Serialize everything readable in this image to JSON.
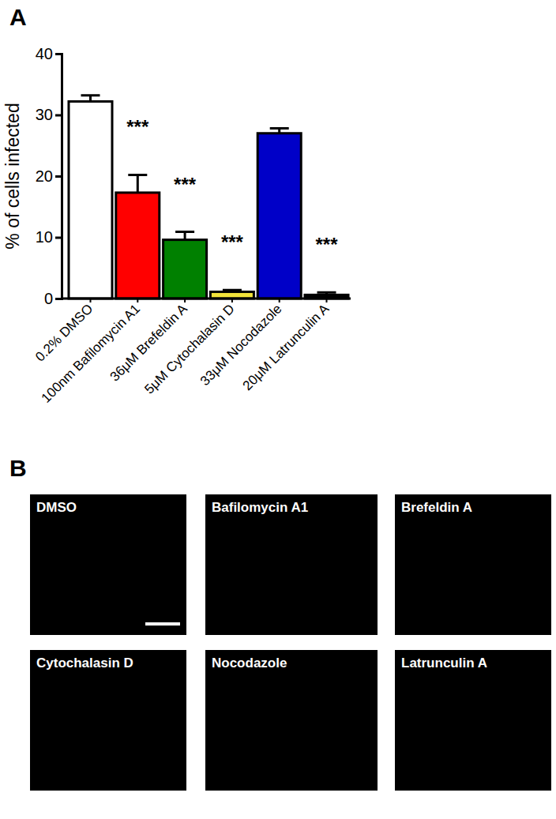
{
  "chart_data": {
    "type": "bar",
    "y_label": "% of cells infected",
    "categories": [
      "0.2% DMSO",
      "100nm Bafilomycin A1",
      "36μM Brefeldin A",
      "5μM Cytochalasin D",
      "33μM Nocodazole",
      "20μM Latrunculin A"
    ],
    "values": [
      32.2,
      17.3,
      9.6,
      1.1,
      27.0,
      0.6
    ],
    "errors": [
      1.0,
      2.9,
      1.3,
      0.3,
      0.8,
      0.4
    ],
    "significance": [
      null,
      "***",
      "***",
      "***",
      null,
      "***"
    ],
    "colors": [
      "#ffffff",
      "#ff0000",
      "#008000",
      "#f2e33a",
      "#0000c8",
      "#000000"
    ],
    "ylim": [
      0,
      40
    ],
    "yticks": [
      0,
      10,
      20,
      30,
      40
    ],
    "grid": false
  },
  "figure": {
    "panel_labels": [
      "A",
      "B"
    ],
    "images": [
      "DMSO",
      "Bafilomycin A1",
      "Brefeldin A",
      "Cytochalasin D",
      "Nocodazole",
      "Latrunculin A"
    ]
  }
}
